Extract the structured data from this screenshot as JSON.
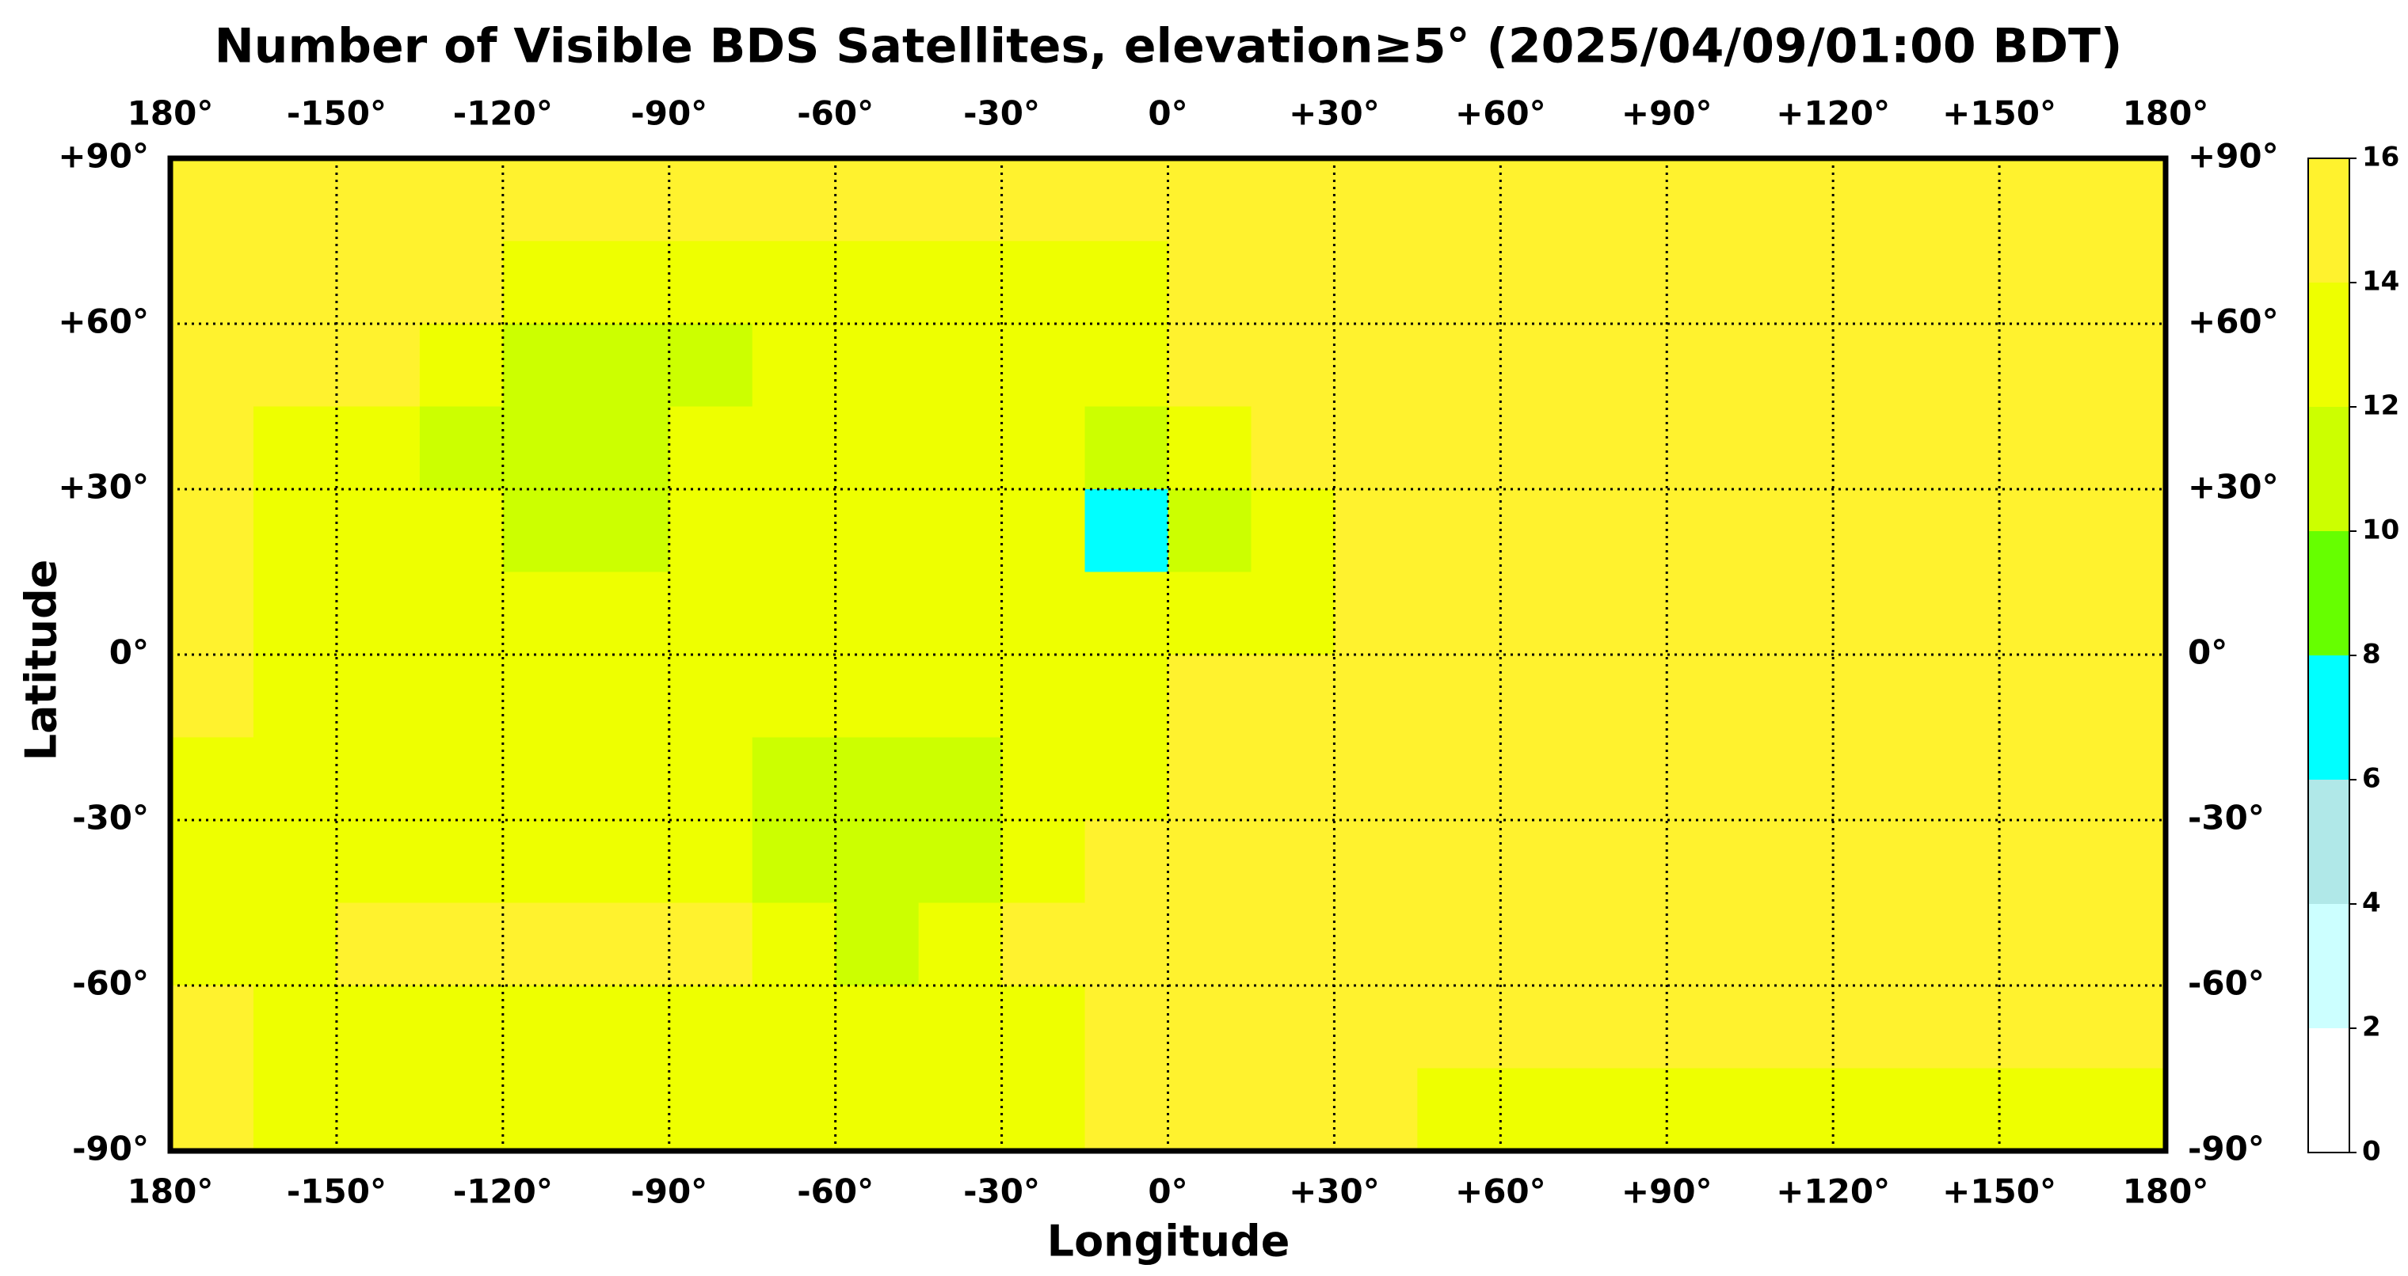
{
  "chart_data": {
    "type": "heatmap",
    "title": "Number of Visible BDS Satellites, elevation≥5° (2025/04/09/01:00 BDT)",
    "x_label": "Longitude",
    "y_label": "Latitude",
    "xlim": [
      -180,
      180
    ],
    "ylim": [
      -90,
      90
    ],
    "xticks": [
      {
        "value": -180,
        "label": "180°"
      },
      {
        "value": -150,
        "label": "-150°"
      },
      {
        "value": -120,
        "label": "-120°"
      },
      {
        "value": -90,
        "label": "-90°"
      },
      {
        "value": -60,
        "label": "-60°"
      },
      {
        "value": -30,
        "label": "-30°"
      },
      {
        "value": 0,
        "label": "0°"
      },
      {
        "value": 30,
        "label": "+30°"
      },
      {
        "value": 60,
        "label": "+60°"
      },
      {
        "value": 90,
        "label": "+90°"
      },
      {
        "value": 120,
        "label": "+120°"
      },
      {
        "value": 150,
        "label": "+150°"
      },
      {
        "value": 180,
        "label": "180°"
      }
    ],
    "yticks": [
      {
        "value": 90,
        "label": "+90°"
      },
      {
        "value": 60,
        "label": "+60°"
      },
      {
        "value": 30,
        "label": "+30°"
      },
      {
        "value": 0,
        "label": "0°"
      },
      {
        "value": -30,
        "label": "-30°"
      },
      {
        "value": -60,
        "label": "-60°"
      },
      {
        "value": -90,
        "label": "-90°"
      }
    ],
    "grid": true,
    "levels": [
      0,
      2,
      4,
      6,
      8,
      10,
      12,
      14,
      16
    ],
    "colors": [
      "#ffffff",
      "#ccffff",
      "#b0e8e8",
      "#00ffff",
      "#66ff00",
      "#ccff00",
      "#eeff00",
      "#fff22e"
    ],
    "x": [
      -172.5,
      -157.5,
      -142.5,
      -127.5,
      -112.5,
      -97.5,
      -82.5,
      -67.5,
      -52.5,
      -37.5,
      -22.5,
      -7.5,
      7.5,
      22.5,
      37.5,
      52.5,
      67.5,
      82.5,
      97.5,
      112.5,
      127.5,
      142.5,
      157.5,
      172.5
    ],
    "y": [
      82.5,
      67.5,
      52.5,
      37.5,
      22.5,
      7.5,
      -7.5,
      -22.5,
      -37.5,
      -52.5,
      -67.5,
      -82.5
    ],
    "z": [
      [
        15,
        15,
        15,
        15,
        15,
        15,
        15,
        15,
        15,
        15,
        15,
        15,
        15,
        15,
        15,
        15,
        15,
        15,
        15,
        15,
        15,
        15,
        15,
        15
      ],
      [
        15,
        15,
        15,
        15,
        13,
        13,
        13,
        13,
        13,
        13,
        13,
        13,
        15,
        15,
        15,
        15,
        15,
        15,
        15,
        15,
        15,
        15,
        15,
        15
      ],
      [
        15,
        15,
        15,
        13,
        11,
        11,
        11,
        13,
        13,
        13,
        13,
        13,
        15,
        15,
        15,
        15,
        15,
        15,
        15,
        15,
        15,
        15,
        15,
        15
      ],
      [
        15,
        13,
        13,
        11,
        11,
        11,
        13,
        13,
        13,
        13,
        13,
        11,
        13,
        15,
        15,
        15,
        15,
        15,
        15,
        15,
        15,
        15,
        15,
        15
      ],
      [
        15,
        13,
        13,
        13,
        11,
        11,
        13,
        13,
        13,
        13,
        13,
        7,
        11,
        13,
        15,
        15,
        15,
        15,
        15,
        15,
        15,
        15,
        15,
        15
      ],
      [
        15,
        13,
        13,
        13,
        13,
        13,
        13,
        13,
        13,
        13,
        13,
        13,
        13,
        13,
        15,
        15,
        15,
        15,
        15,
        15,
        15,
        15,
        15,
        15
      ],
      [
        15,
        13,
        13,
        13,
        13,
        13,
        13,
        13,
        13,
        13,
        13,
        13,
        15,
        15,
        15,
        15,
        15,
        15,
        15,
        15,
        15,
        15,
        15,
        15
      ],
      [
        13,
        13,
        13,
        13,
        13,
        13,
        13,
        11,
        11,
        11,
        13,
        13,
        15,
        15,
        15,
        15,
        15,
        15,
        15,
        15,
        15,
        15,
        15,
        15
      ],
      [
        13,
        13,
        13,
        13,
        13,
        13,
        13,
        11,
        11,
        11,
        13,
        15,
        15,
        15,
        15,
        15,
        15,
        15,
        15,
        15,
        15,
        15,
        15,
        15
      ],
      [
        13,
        13,
        15,
        15,
        15,
        15,
        15,
        13,
        11,
        13,
        15,
        15,
        15,
        15,
        15,
        15,
        15,
        15,
        15,
        15,
        15,
        15,
        15,
        15
      ],
      [
        15,
        13,
        13,
        13,
        13,
        13,
        13,
        13,
        13,
        13,
        13,
        15,
        15,
        15,
        15,
        15,
        15,
        15,
        15,
        15,
        15,
        15,
        15,
        15
      ],
      [
        15,
        13,
        13,
        13,
        13,
        13,
        13,
        13,
        13,
        13,
        13,
        15,
        15,
        15,
        15,
        13,
        13,
        13,
        13,
        13,
        13,
        13,
        13,
        13
      ]
    ]
  }
}
